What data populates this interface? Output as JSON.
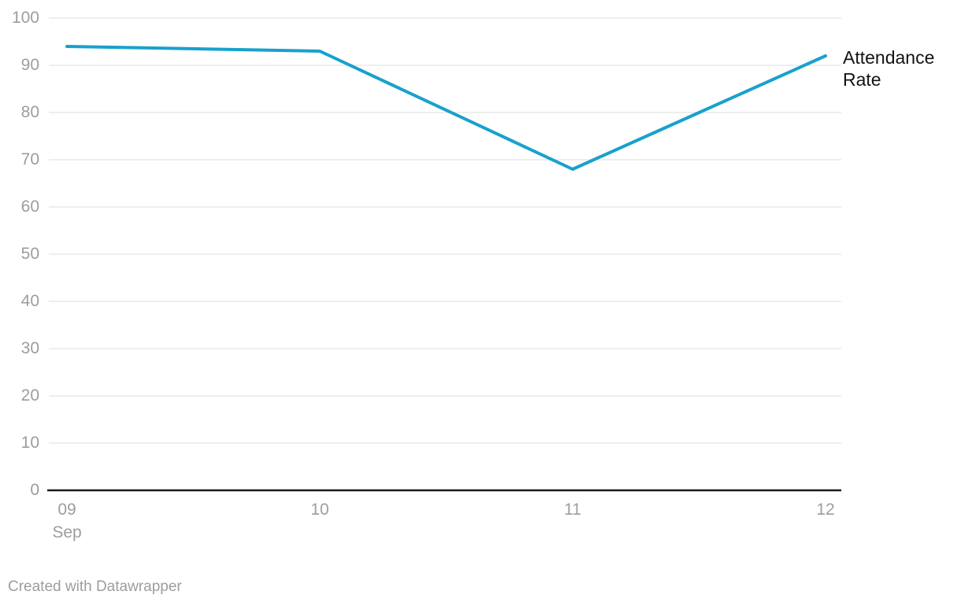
{
  "chart_data": {
    "type": "line",
    "x": [
      "09",
      "10",
      "11",
      "12"
    ],
    "x_secondary_label": "Sep",
    "series": [
      {
        "name": "Attendance Rate",
        "values": [
          94,
          93,
          68,
          92
        ]
      }
    ],
    "ylim": [
      0,
      100
    ],
    "yticks": [
      0,
      10,
      20,
      30,
      40,
      50,
      60,
      70,
      80,
      90,
      100
    ],
    "grid": "horizontal",
    "legend_position": "end-of-line-right",
    "line_color": "#18a1cd",
    "axis_color": "#1a1a1a",
    "grid_color": "#e8e8e8",
    "tick_label_color": "#9d9d9d"
  },
  "footer": {
    "credit": "Created with Datawrapper"
  }
}
